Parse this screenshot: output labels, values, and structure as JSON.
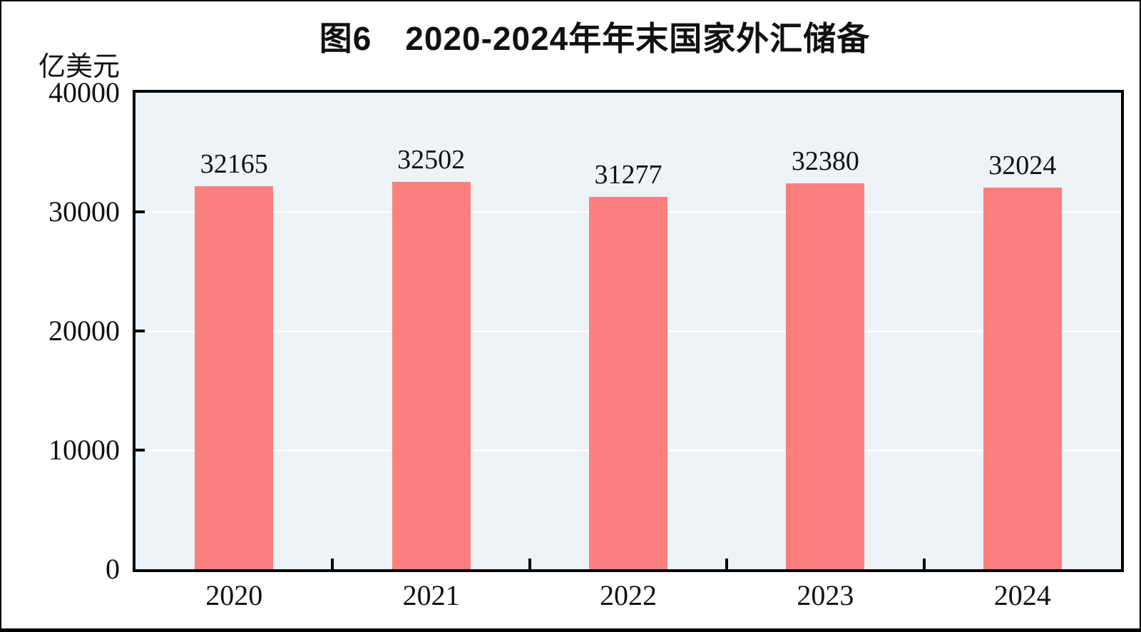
{
  "title": "图6　2020-2024年年末国家外汇储备",
  "y_axis_unit": "亿美元",
  "colors": {
    "bar": "#fc7f7f",
    "plot_background": "#edf3f7",
    "gridline": "#ffffff",
    "axis": "#000000",
    "text": "#111111"
  },
  "chart_data": {
    "type": "bar",
    "title": "图6　2020-2024年年末国家外汇储备",
    "categories": [
      "2020",
      "2021",
      "2022",
      "2023",
      "2024"
    ],
    "values": [
      32165,
      32502,
      31277,
      32380,
      32024
    ],
    "data_labels": [
      "32165",
      "32502",
      "31277",
      "32380",
      "32024"
    ],
    "xlabel": "",
    "ylabel": "亿美元",
    "ylim": [
      0,
      40000
    ],
    "yticks": [
      0,
      10000,
      20000,
      30000,
      40000
    ],
    "ytick_labels": [
      "0",
      "10000",
      "20000",
      "30000",
      "40000"
    ],
    "grid": true,
    "gridline_values": [
      10000,
      20000,
      30000
    ],
    "legend": false
  }
}
